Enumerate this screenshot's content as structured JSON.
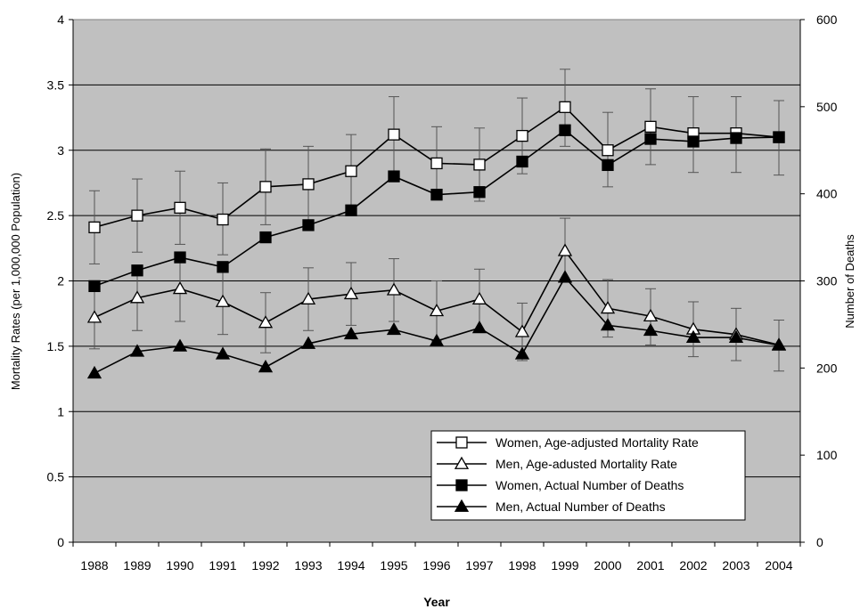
{
  "chart_data": {
    "type": "line",
    "xlabel": "Year",
    "ylabel": "Mortality Rates (per 1,000,000 Population)",
    "y2label": "Number of Deaths",
    "ylim": [
      0,
      4
    ],
    "y2lim": [
      0,
      600
    ],
    "yticks": [
      "0",
      "0.5",
      "1",
      "1.5",
      "2",
      "2.5",
      "3",
      "3.5",
      "4"
    ],
    "y2ticks": [
      "0",
      "100",
      "200",
      "300",
      "400",
      "500",
      "600"
    ],
    "grid": "horizontal",
    "legend_position": "bottom-right",
    "background_color": "#c0c0c0",
    "categories": [
      "1988",
      "1989",
      "1990",
      "1991",
      "1992",
      "1993",
      "1994",
      "1995",
      "1996",
      "1997",
      "1998",
      "1999",
      "2000",
      "2001",
      "2002",
      "2003",
      "2004"
    ],
    "series": [
      {
        "name": "Women, Age-adjusted Mortality Rate",
        "axis": "left",
        "marker": "square-open",
        "values": [
          2.41,
          2.5,
          2.56,
          2.47,
          2.72,
          2.74,
          2.84,
          3.12,
          2.9,
          2.89,
          3.11,
          3.33,
          3.0,
          3.18,
          3.13,
          3.13,
          3.1
        ],
        "err_low": [
          2.13,
          2.22,
          2.28,
          2.2,
          2.43,
          2.46,
          2.56,
          2.82,
          2.62,
          2.61,
          2.82,
          3.03,
          2.72,
          2.89,
          2.83,
          2.83,
          2.81
        ],
        "err_high": [
          2.69,
          2.78,
          2.84,
          2.75,
          3.01,
          3.03,
          3.12,
          3.41,
          3.18,
          3.17,
          3.4,
          3.62,
          3.29,
          3.47,
          3.41,
          3.41,
          3.38
        ]
      },
      {
        "name": "Men, Age-adusted Mortality Rate",
        "axis": "left",
        "marker": "triangle-open",
        "values": [
          1.72,
          1.87,
          1.94,
          1.84,
          1.68,
          1.86,
          1.9,
          1.93,
          1.77,
          1.86,
          1.61,
          2.23,
          1.79,
          1.73,
          1.63,
          1.59,
          1.51
        ],
        "err_low": [
          1.48,
          1.62,
          1.69,
          1.59,
          1.45,
          1.62,
          1.66,
          1.69,
          1.54,
          1.62,
          1.39,
          1.99,
          1.57,
          1.51,
          1.42,
          1.39,
          1.31
        ],
        "err_high": [
          1.96,
          2.12,
          2.19,
          2.09,
          1.91,
          2.1,
          2.14,
          2.17,
          2.0,
          2.09,
          1.83,
          2.48,
          2.01,
          1.94,
          1.84,
          1.79,
          1.7
        ]
      },
      {
        "name": "Women, Actual Number of Deaths",
        "axis": "right",
        "marker": "square-filled",
        "values": [
          294,
          312,
          327,
          316,
          350,
          364,
          381,
          420,
          399,
          402,
          437,
          473,
          433,
          463,
          460,
          464,
          465
        ]
      },
      {
        "name": "Men, Actual Number of Deaths",
        "axis": "right",
        "marker": "triangle-filled",
        "values": [
          194,
          219,
          225,
          216,
          201,
          228,
          239,
          244,
          231,
          246,
          216,
          304,
          249,
          243,
          235,
          235,
          226
        ]
      }
    ]
  }
}
